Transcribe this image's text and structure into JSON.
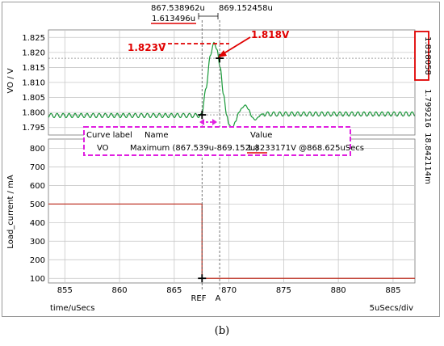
{
  "caption": "(b)",
  "cursors": {
    "ref_time": "867.538962u",
    "a_time": "869.152458u",
    "delta_time": "1.613496u",
    "a_value_vo": "1.818058",
    "ref_value_vo": "1.799216",
    "delta_value_vo": "18.842114m",
    "ref_label": "REF",
    "a_label": "A"
  },
  "annotations": {
    "peak_label": "1.823V",
    "cursor_label": "1.818V"
  },
  "measurement_table": {
    "headers": [
      "Curve label",
      "Name",
      "Value"
    ],
    "row": {
      "curve": "VO",
      "name": "Maximum (867.539u-869.152u)",
      "value_underlined": "1.823",
      "value_rest": "3171V @868.625uSecs"
    }
  },
  "x_axis": {
    "label": "time/uSecs",
    "scale": "5uSecs/div"
  },
  "colors": {
    "vo": "#1a9a3a",
    "current": "#c0392b",
    "annotation": "#e00000",
    "box": "#e020e0"
  },
  "chart_data": [
    {
      "type": "line",
      "ylabel": "VO / V",
      "xlabel": "time/uSecs",
      "xlim": [
        853.5,
        887
      ],
      "ylim": [
        1.7925,
        1.8275
      ],
      "x_ticks": [
        855,
        860,
        865,
        870,
        875,
        880,
        885
      ],
      "y_ticks": [
        1.795,
        1.8,
        1.805,
        1.81,
        1.815,
        1.82,
        1.825
      ],
      "y_tick_labels": [
        "1.795",
        "1.800",
        "1.805",
        "1.810",
        "1.815",
        "1.820",
        "1.825"
      ],
      "series": [
        {
          "x": [
            853.5,
            867.5,
            867.9,
            868.3,
            868.625,
            868.9,
            869.2,
            869.5,
            869.8,
            870.0,
            870.3,
            870.6,
            870.9,
            871.2,
            871.5,
            871.8,
            872.1,
            872.4,
            872.7,
            873.0,
            874.0,
            887.0
          ],
          "y": [
            1.799,
            1.799,
            1.808,
            1.819,
            1.8233,
            1.821,
            1.815,
            1.806,
            1.799,
            1.796,
            1.7945,
            1.797,
            1.8,
            1.8015,
            1.8025,
            1.801,
            1.7985,
            1.7975,
            1.7985,
            1.7995,
            1.7995,
            1.7995
          ],
          "ripple_amplitude": 0.0007,
          "ripple_period": 0.55
        }
      ]
    },
    {
      "type": "line",
      "ylabel": "Load_current / mA",
      "xlabel": "time/uSecs",
      "xlim": [
        853.5,
        887
      ],
      "ylim": [
        75,
        850
      ],
      "x_ticks": [
        855,
        860,
        865,
        870,
        875,
        880,
        885
      ],
      "x_tick_labels": [
        "855",
        "860",
        "865",
        "870",
        "875",
        "880",
        "885"
      ],
      "y_ticks": [
        100,
        200,
        300,
        400,
        500,
        600,
        700,
        800
      ],
      "y_tick_labels": [
        "100",
        "200",
        "300",
        "400",
        "500",
        "600",
        "700",
        "800"
      ],
      "series": [
        {
          "x": [
            853.5,
            867.54,
            867.54,
            887.0
          ],
          "y": [
            500,
            500,
            100,
            100
          ]
        }
      ]
    }
  ]
}
